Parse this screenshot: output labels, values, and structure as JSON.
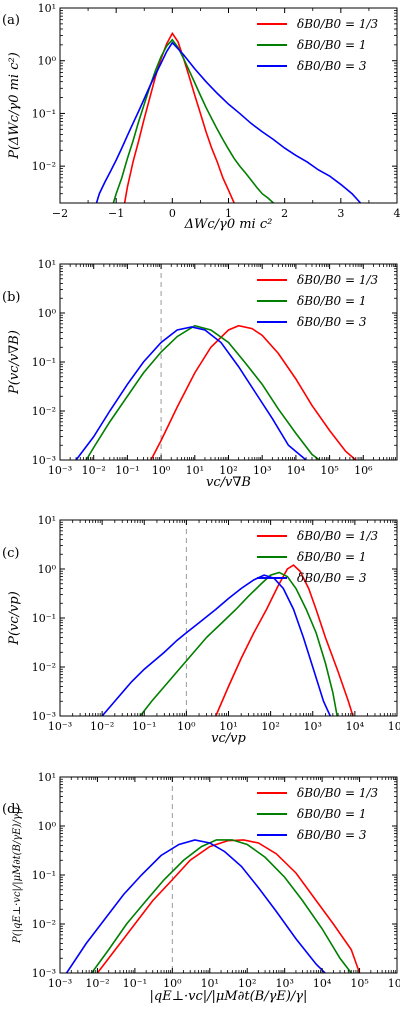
{
  "colors": {
    "red": "#ff0000",
    "green": "#007f00",
    "blue": "#0000ff",
    "dash": "#999999"
  },
  "legend_labels": [
    "δB0/B0 = 1/3",
    "δB0/B0 = 1",
    "δB0/B0 = 3"
  ],
  "chart_data": [
    {
      "type": "line",
      "panel_label": "(a)",
      "xlabel": "ΔWc/γ0 mi c²",
      "ylabel": "P(ΔWc/γ0 mi c²)",
      "xscale": "linear",
      "yscale": "log",
      "xlim": [
        -2,
        4
      ],
      "ylim": [
        0.002,
        10
      ],
      "xticks": [
        -2,
        -1,
        0,
        1,
        2,
        3,
        4
      ],
      "xticklabels": [
        "−2",
        "−1",
        "0",
        "1",
        "2",
        "3",
        "4"
      ],
      "yticks": [
        0.01,
        0.1,
        1,
        10
      ],
      "yticklabels": [
        "10⁻²",
        "10⁻¹",
        "10⁰",
        "10¹"
      ],
      "legend_position": "top-right",
      "vline": null,
      "series": [
        {
          "name": "δB0/B0 = 1/3",
          "color": "#ff0000",
          "x": [
            -0.85,
            -0.8,
            -0.7,
            -0.6,
            -0.5,
            -0.4,
            -0.3,
            -0.2,
            -0.1,
            0,
            0.1,
            0.2,
            0.3,
            0.4,
            0.5,
            0.6,
            0.7,
            0.8,
            0.9,
            1.0,
            1.1
          ],
          "y": [
            0.002,
            0.004,
            0.012,
            0.03,
            0.08,
            0.2,
            0.5,
            1.1,
            2.1,
            3.3,
            2.3,
            1.1,
            0.5,
            0.22,
            0.1,
            0.045,
            0.022,
            0.012,
            0.006,
            0.0035,
            0.002
          ]
        },
        {
          "name": "δB0/B0 = 1",
          "color": "#007f00",
          "x": [
            -1.05,
            -1.0,
            -0.9,
            -0.8,
            -0.7,
            -0.6,
            -0.5,
            -0.4,
            -0.3,
            -0.2,
            -0.1,
            0,
            0.1,
            0.2,
            0.3,
            0.4,
            0.5,
            0.6,
            0.7,
            0.8,
            0.9,
            1.0,
            1.1,
            1.2,
            1.3,
            1.4,
            1.5,
            1.6,
            1.7,
            1.8
          ],
          "y": [
            0.002,
            0.003,
            0.006,
            0.014,
            0.03,
            0.07,
            0.15,
            0.32,
            0.65,
            1.2,
            1.9,
            2.5,
            1.8,
            1.1,
            0.65,
            0.38,
            0.22,
            0.13,
            0.08,
            0.05,
            0.032,
            0.021,
            0.014,
            0.01,
            0.0075,
            0.0055,
            0.004,
            0.003,
            0.0025,
            0.002
          ]
        },
        {
          "name": "δB0/B0 = 3",
          "color": "#0000ff",
          "x": [
            -1.35,
            -1.3,
            -1.2,
            -1.1,
            -1.0,
            -0.9,
            -0.8,
            -0.7,
            -0.6,
            -0.5,
            -0.4,
            -0.3,
            -0.2,
            -0.1,
            0,
            0.2,
            0.4,
            0.6,
            0.8,
            1.0,
            1.2,
            1.4,
            1.6,
            1.8,
            2.0,
            2.2,
            2.4,
            2.6,
            2.8,
            3.0,
            3.2,
            3.35
          ],
          "y": [
            0.002,
            0.003,
            0.005,
            0.008,
            0.013,
            0.022,
            0.038,
            0.065,
            0.11,
            0.19,
            0.33,
            0.55,
            0.9,
            1.5,
            2.2,
            1.3,
            0.7,
            0.4,
            0.24,
            0.15,
            0.1,
            0.065,
            0.045,
            0.032,
            0.022,
            0.016,
            0.012,
            0.0085,
            0.0065,
            0.0045,
            0.003,
            0.002
          ]
        }
      ]
    },
    {
      "type": "line",
      "panel_label": "(b)",
      "xlabel": "vc/v∇B",
      "ylabel": "P(vc/v∇B)",
      "xscale": "log",
      "yscale": "log",
      "xlim": [
        0.001,
        10000000
      ],
      "ylim": [
        0.001,
        10
      ],
      "xticks": [
        0.001,
        0.01,
        0.1,
        1,
        10,
        100,
        1000,
        10000,
        100000,
        1000000
      ],
      "xticklabels": [
        "10⁻³",
        "10⁻²",
        "10⁻¹",
        "10⁰",
        "10¹",
        "10²",
        "10³",
        "10⁴",
        "10⁵",
        "10⁶"
      ],
      "yticks": [
        0.001,
        0.01,
        0.1,
        1,
        10
      ],
      "yticklabels": [
        "10⁻³",
        "10⁻²",
        "10⁻¹",
        "10⁰",
        "10¹"
      ],
      "legend_position": "top-right",
      "vline": 1,
      "series": [
        {
          "name": "δB0/B0 = 1/3",
          "color": "#ff0000",
          "x": [
            0.5,
            1,
            3,
            10,
            30,
            100,
            200,
            500,
            1000,
            3000,
            10000,
            30000,
            100000,
            300000,
            600000
          ],
          "y": [
            0.001,
            0.0025,
            0.012,
            0.06,
            0.2,
            0.45,
            0.55,
            0.48,
            0.35,
            0.15,
            0.045,
            0.013,
            0.004,
            0.0015,
            0.001
          ]
        },
        {
          "name": "δB0/B0 = 1",
          "color": "#007f00",
          "x": [
            0.006,
            0.01,
            0.03,
            0.1,
            0.3,
            1,
            3,
            10,
            30,
            100,
            300,
            1000,
            3000,
            10000,
            30000,
            50000
          ],
          "y": [
            0.001,
            0.0018,
            0.006,
            0.02,
            0.06,
            0.16,
            0.33,
            0.55,
            0.45,
            0.25,
            0.1,
            0.035,
            0.011,
            0.0035,
            0.0013,
            0.001
          ]
        },
        {
          "name": "δB0/B0 = 3",
          "color": "#0000ff",
          "x": [
            0.003,
            0.01,
            0.03,
            0.1,
            0.3,
            1,
            3,
            8,
            20,
            60,
            200,
            600,
            2000,
            6000,
            20000
          ],
          "y": [
            0.001,
            0.003,
            0.01,
            0.035,
            0.1,
            0.25,
            0.45,
            0.52,
            0.45,
            0.25,
            0.08,
            0.025,
            0.007,
            0.002,
            0.001
          ]
        }
      ]
    },
    {
      "type": "line",
      "panel_label": "(c)",
      "xlabel": "vc/vp",
      "ylabel": "P(vc/vp)",
      "xscale": "log",
      "yscale": "log",
      "xlim": [
        0.001,
        100000
      ],
      "ylim": [
        0.001,
        10
      ],
      "xticks": [
        0.001,
        0.01,
        0.1,
        1,
        10,
        100,
        1000,
        10000,
        100000
      ],
      "xticklabels": [
        "10⁻³",
        "10⁻²",
        "10⁻¹",
        "10⁰",
        "10¹",
        "10²",
        "10³",
        "10⁴",
        "10⁵"
      ],
      "yticks": [
        0.001,
        0.01,
        0.1,
        1,
        10
      ],
      "yticklabels": [
        "10⁻³",
        "10⁻²",
        "10⁻¹",
        "10⁰",
        "10¹"
      ],
      "legend_position": "top-right",
      "vline": 1,
      "series": [
        {
          "name": "δB0/B0 = 1/3",
          "color": "#ff0000",
          "x": [
            5,
            10,
            20,
            40,
            80,
            150,
            250,
            350,
            500,
            800,
            1200,
            2000,
            4000,
            7000,
            9000
          ],
          "y": [
            0.001,
            0.004,
            0.015,
            0.05,
            0.15,
            0.45,
            1.0,
            1.2,
            0.9,
            0.4,
            0.15,
            0.04,
            0.008,
            0.002,
            0.001
          ]
        },
        {
          "name": "δB0/B0 = 1",
          "color": "#007f00",
          "x": [
            0.08,
            0.15,
            0.3,
            0.6,
            1.5,
            3,
            7,
            15,
            30,
            60,
            100,
            160,
            250,
            400,
            700,
            1200,
            2000,
            3000,
            3800
          ],
          "y": [
            0.001,
            0.002,
            0.004,
            0.008,
            0.02,
            0.04,
            0.08,
            0.15,
            0.28,
            0.5,
            0.75,
            0.85,
            0.7,
            0.4,
            0.15,
            0.05,
            0.012,
            0.003,
            0.001
          ]
        },
        {
          "name": "δB0/B0 = 3",
          "color": "#0000ff",
          "x": [
            0.01,
            0.02,
            0.05,
            0.1,
            0.3,
            0.6,
            1,
            2,
            5,
            10,
            20,
            40,
            70,
            120,
            200,
            350,
            600,
            1000,
            1800,
            2600
          ],
          "y": [
            0.001,
            0.002,
            0.005,
            0.009,
            0.02,
            0.035,
            0.05,
            0.08,
            0.15,
            0.25,
            0.4,
            0.6,
            0.75,
            0.65,
            0.4,
            0.15,
            0.04,
            0.01,
            0.002,
            0.001
          ]
        }
      ]
    },
    {
      "type": "line",
      "panel_label": "(d)",
      "xlabel": "|qE⊥·vc|/|μM∂t(B/γE)/γ|",
      "ylabel": "P(|qE⊥·vc|/|μM∂t(B/γE)/γ|)",
      "xscale": "log",
      "yscale": "log",
      "xlim": [
        0.001,
        1000000
      ],
      "ylim": [
        0.001,
        10
      ],
      "xticks": [
        0.001,
        0.01,
        0.1,
        1,
        10,
        100,
        1000,
        10000,
        100000,
        1000000
      ],
      "xticklabels": [
        "10⁻³",
        "10⁻²",
        "10⁻¹",
        "10⁰",
        "10¹",
        "10²",
        "10³",
        "10⁴",
        "10⁵",
        "10⁶"
      ],
      "yticks": [
        0.001,
        0.01,
        0.1,
        1,
        10
      ],
      "yticklabels": [
        "10⁻³",
        "10⁻²",
        "10⁻¹",
        "10⁰",
        "10¹"
      ],
      "legend_position": "top-right",
      "vline": 1,
      "series": [
        {
          "name": "δB0/B0 = 1/3",
          "color": "#ff0000",
          "x": [
            0.01,
            0.03,
            0.1,
            0.3,
            1,
            3,
            10,
            30,
            80,
            200,
            600,
            2000,
            6000,
            20000,
            60000,
            100000
          ],
          "y": [
            0.001,
            0.003,
            0.01,
            0.03,
            0.08,
            0.2,
            0.38,
            0.5,
            0.52,
            0.45,
            0.27,
            0.11,
            0.035,
            0.01,
            0.003,
            0.001
          ]
        },
        {
          "name": "δB0/B0 = 1",
          "color": "#007f00",
          "x": [
            0.007,
            0.02,
            0.06,
            0.2,
            0.6,
            2,
            6,
            15,
            40,
            100,
            300,
            1000,
            3000,
            10000,
            30000,
            60000
          ],
          "y": [
            0.001,
            0.003,
            0.01,
            0.03,
            0.08,
            0.2,
            0.38,
            0.52,
            0.52,
            0.42,
            0.23,
            0.09,
            0.03,
            0.008,
            0.002,
            0.001
          ]
        },
        {
          "name": "δB0/B0 = 3",
          "color": "#0000ff",
          "x": [
            0.0015,
            0.005,
            0.015,
            0.05,
            0.15,
            0.5,
            1.5,
            4,
            10,
            25,
            70,
            200,
            600,
            2000,
            7000,
            12000
          ],
          "y": [
            0.001,
            0.004,
            0.012,
            0.04,
            0.1,
            0.25,
            0.42,
            0.52,
            0.45,
            0.3,
            0.15,
            0.055,
            0.018,
            0.005,
            0.0015,
            0.001
          ]
        }
      ]
    }
  ]
}
